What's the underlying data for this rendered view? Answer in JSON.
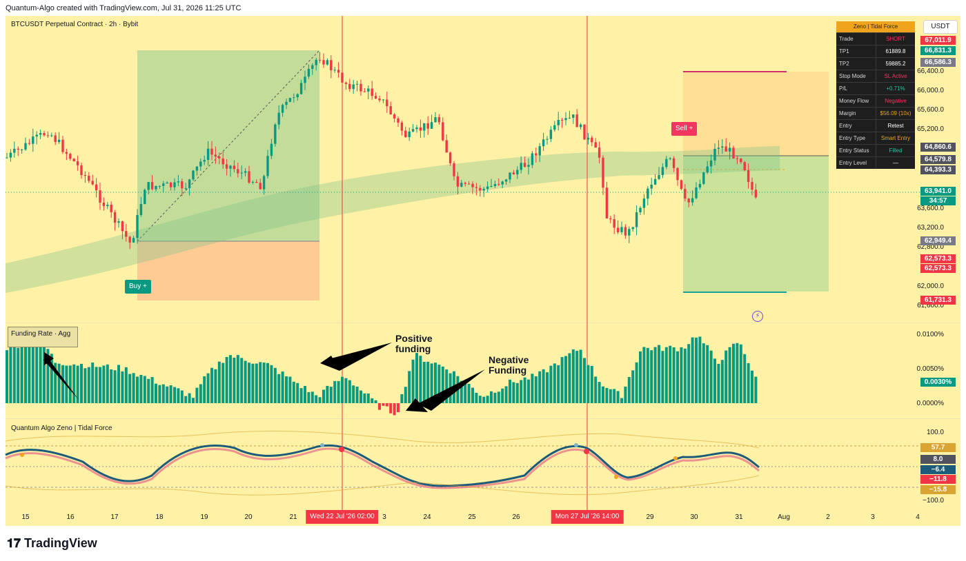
{
  "header": {
    "created_by": "Quantum-Algo created with TradingView.com, Jul 31, 2026 11:25 UTC"
  },
  "symbol": {
    "title": "BTCUSDT Perpetual Contract · 2h · Bybit",
    "currency": "USDT"
  },
  "panes": {
    "funding_label": "Funding Rate · Agg",
    "oscillator_label": "Quantum Algo Zeno | Tidal Force"
  },
  "price_axis": [
    "66,400.0",
    "66,000.0",
    "65,600.0",
    "65,200.0",
    "63,600.0",
    "63,200.0",
    "62,800.0",
    "62,000.0",
    "61,600.0"
  ],
  "price_tags": [
    {
      "text": "67,011.9",
      "color": "#f23645"
    },
    {
      "text": "66,831.3",
      "color": "#089981"
    },
    {
      "text": "66,586.3",
      "color": "#787b86"
    },
    {
      "text": "64,860.6",
      "color": "#50535e"
    },
    {
      "text": "64,579.8",
      "color": "#50535e"
    },
    {
      "text": "64,393.3",
      "color": "#50535e"
    },
    {
      "text": "63,941.0",
      "color": "#089981"
    },
    {
      "text": "34:57",
      "color": "#089981"
    },
    {
      "text": "62,949.4",
      "color": "#787b86"
    },
    {
      "text": "62,573.3",
      "color": "#f23645"
    },
    {
      "text": "62,573.3",
      "color": "#f23645"
    },
    {
      "text": "61,731.3",
      "color": "#f23645"
    }
  ],
  "funding_axis": [
    "0.0100%",
    "0.0050%",
    "0.0000%"
  ],
  "funding_tag": {
    "text": "0.0030%",
    "color": "#089981"
  },
  "osc_axis": [
    "100.0",
    "−100.0"
  ],
  "osc_tags": [
    {
      "text": "57.7",
      "color": "#d9a431"
    },
    {
      "text": "8.0",
      "color": "#50535e"
    },
    {
      "text": "−6.4",
      "color": "#1c5b7a"
    },
    {
      "text": "−11.8",
      "color": "#f23645"
    },
    {
      "text": "−15.8",
      "color": "#d9a431"
    }
  ],
  "time_axis": [
    "15",
    "16",
    "17",
    "18",
    "19",
    "20",
    "21",
    "3",
    "24",
    "25",
    "26",
    "29",
    "30",
    "31",
    "Aug",
    "2",
    "3",
    "4"
  ],
  "time_chips": [
    "Wed 22 Jul '26   02:00",
    "Mon 27 Jul '26   14:00"
  ],
  "trade_panel": {
    "title": "Zeno | Tidal Force",
    "rows": [
      {
        "k": "Trade",
        "v": "SHORT",
        "c": "#f2365f"
      },
      {
        "k": "TP1",
        "v": "61889.8",
        "c": "#ffffff"
      },
      {
        "k": "TP2",
        "v": "59885.2",
        "c": "#ffffff"
      },
      {
        "k": "Stop Mode",
        "v": "SL Active",
        "c": "#f2365f"
      },
      {
        "k": "P/L",
        "v": "+0.71%",
        "c": "#26c6a0"
      },
      {
        "k": "Money Flow",
        "v": "Negative",
        "c": "#f2365f"
      },
      {
        "k": "Margin",
        "v": "$56.09 (10x)",
        "c": "#f0a41d"
      },
      {
        "k": "Entry",
        "v": "Retest",
        "c": "#ffffff"
      },
      {
        "k": "Entry Type",
        "v": "Smart Entry",
        "c": "#f0a41d"
      },
      {
        "k": "Entry Status",
        "v": "Filled",
        "c": "#26c6a0"
      },
      {
        "k": "Entry Level",
        "v": "—",
        "c": "#ffffff"
      }
    ]
  },
  "signals": {
    "buy": "Buy +",
    "sell": "Sell +"
  },
  "annotations": {
    "positive": "Positive\nfunding",
    "negative": "Negative\nFunding"
  },
  "brand": {
    "logo": "TradingView"
  },
  "colors": {
    "up": "#089981",
    "down": "#f23645",
    "background": "#fff1a6"
  }
}
